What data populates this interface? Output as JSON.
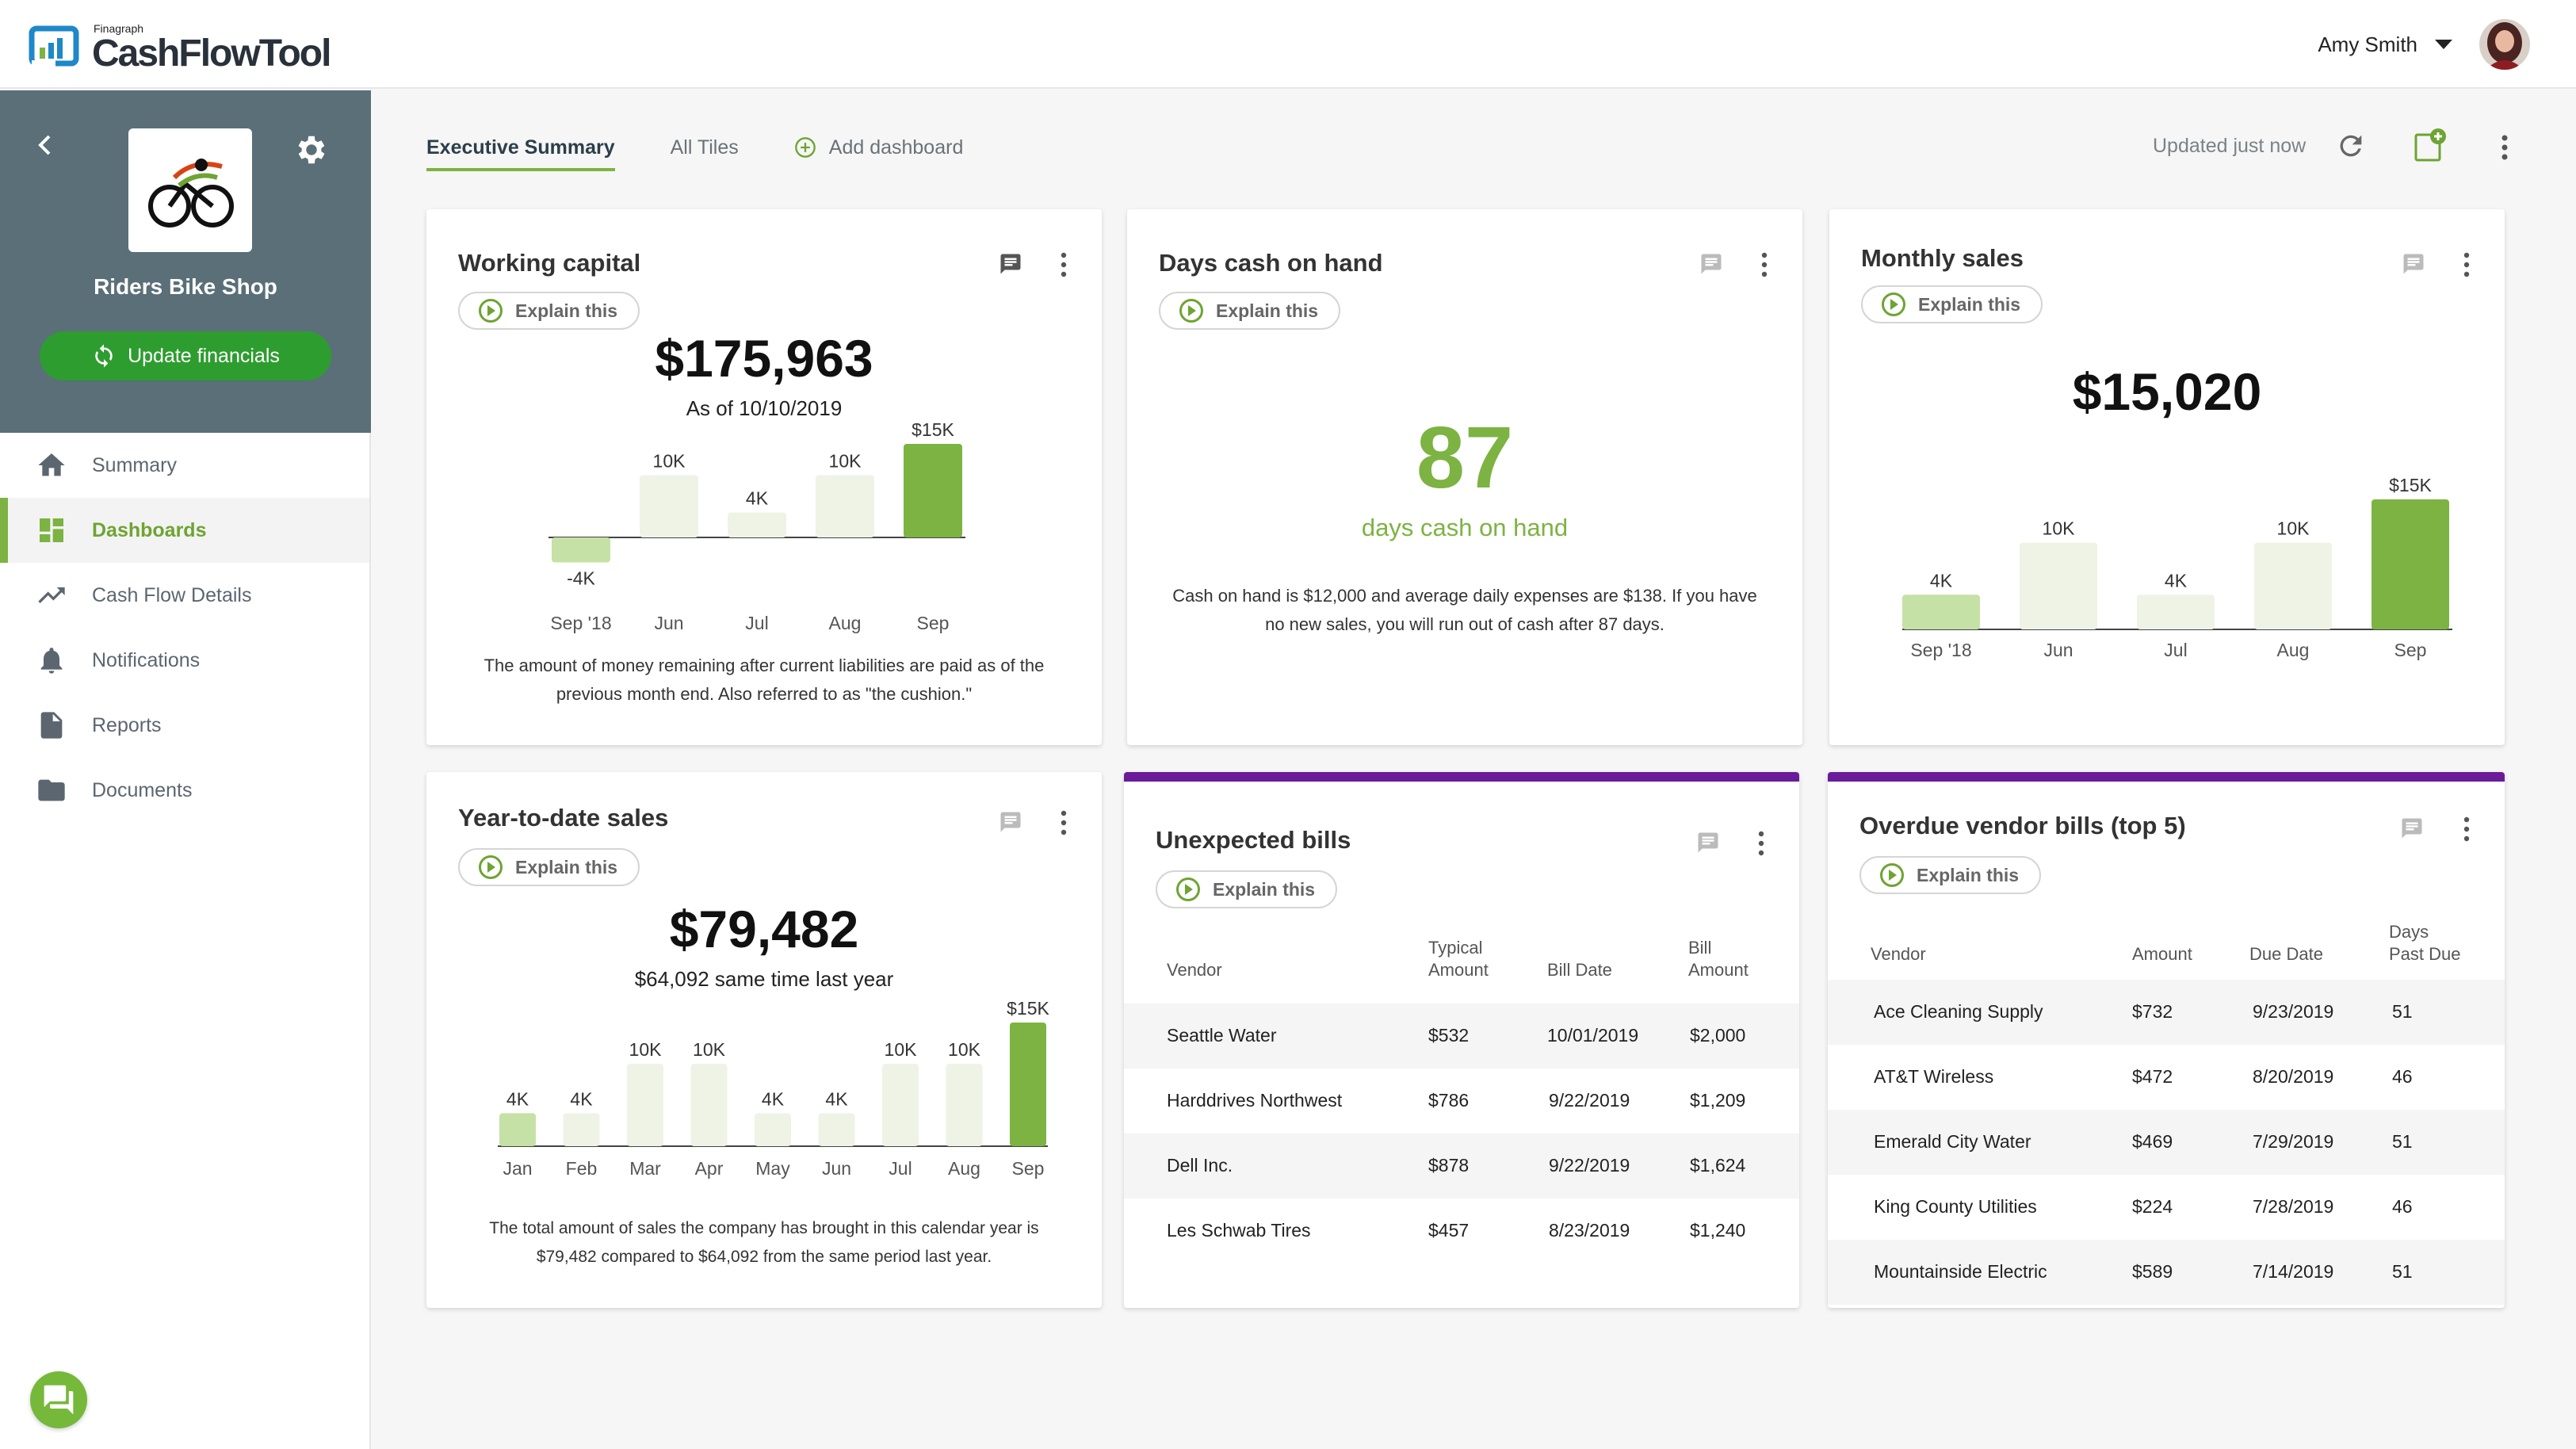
{
  "app": {
    "brand_small": "Finagraph",
    "brand": "CashFlowTool"
  },
  "user": {
    "name": "Amy Smith"
  },
  "sidebar": {
    "company_name": "Riders Bike Shop",
    "update_label": "Update financials",
    "items": [
      {
        "label": "Summary",
        "icon": "home-icon"
      },
      {
        "label": "Dashboards",
        "icon": "dashboard-icon"
      },
      {
        "label": "Cash Flow Details",
        "icon": "trending-icon"
      },
      {
        "label": "Notifications",
        "icon": "bell-icon"
      },
      {
        "label": "Reports",
        "icon": "report-icon"
      },
      {
        "label": "Documents",
        "icon": "folder-icon"
      }
    ]
  },
  "tabs": {
    "executive": "Executive Summary",
    "all_tiles": "All Tiles",
    "add": "Add dashboard"
  },
  "status": {
    "updated": "Updated just now"
  },
  "explain_label": "Explain this",
  "colors": {
    "accent_green": "#7cb342",
    "light_green": "#c5e1a5",
    "pale_green": "#eef3e6",
    "purple": "#6a1b9a"
  },
  "cards": {
    "working_capital": {
      "title": "Working capital",
      "value": "$175,963",
      "sub": "As of 10/10/2019",
      "desc": "The amount of money remaining after current liabilities are paid as of the previous month end. Also referred to as \"the cushion.\""
    },
    "days_cash": {
      "title": "Days cash on hand",
      "value": "87",
      "sub": "days cash on hand",
      "desc": "Cash on hand is $12,000 and average daily expenses are $138.  If you have no new sales, you will run out of cash after 87 days."
    },
    "monthly_sales": {
      "title": "Monthly sales",
      "value": "$15,020"
    },
    "ytd_sales": {
      "title": "Year-to-date sales",
      "value": "$79,482",
      "sub": "$64,092 same time last year",
      "desc": "The total amount of sales the company has brought in this calendar year is $79,482 compared to $64,092 from the same period last year."
    },
    "unexpected_bills": {
      "title": "Unexpected bills",
      "headers": {
        "vendor": "Vendor",
        "typical_1": "Typical",
        "typical_2": "Amount",
        "bill_date": "Bill Date",
        "bill_1": "Bill",
        "bill_2": "Amount"
      },
      "rows": [
        {
          "vendor": "Seattle Water",
          "typical": "$532",
          "date": "10/01/2019",
          "amount": "$2,000"
        },
        {
          "vendor": "Harddrives Northwest",
          "typical": "$786",
          "date": "9/22/2019",
          "amount": "$1,209"
        },
        {
          "vendor": "Dell Inc.",
          "typical": "$878",
          "date": "9/22/2019",
          "amount": "$1,624"
        },
        {
          "vendor": "Les Schwab Tires",
          "typical": "$457",
          "date": "8/23/2019",
          "amount": "$1,240"
        }
      ]
    },
    "overdue_bills": {
      "title": "Overdue vendor bills (top 5)",
      "headers": {
        "vendor": "Vendor",
        "amount": "Amount",
        "due": "Due Date",
        "days_1": "Days",
        "days_2": "Past Due"
      },
      "rows": [
        {
          "vendor": "Ace Cleaning Supply",
          "amount": "$732",
          "due": "9/23/2019",
          "days": "51"
        },
        {
          "vendor": "AT&T Wireless",
          "amount": "$472",
          "due": "8/20/2019",
          "days": "46"
        },
        {
          "vendor": "Emerald City Water",
          "amount": "$469",
          "due": "7/29/2019",
          "days": "51"
        },
        {
          "vendor": "King County Utilities",
          "amount": "$224",
          "due": "7/28/2019",
          "days": "46"
        },
        {
          "vendor": "Mountainside Electric",
          "amount": "$589",
          "due": "7/14/2019",
          "days": "51"
        }
      ]
    }
  },
  "chart_data": [
    {
      "type": "bar",
      "title": "Working capital",
      "categories": [
        "Sep '18",
        "Jun",
        "Jul",
        "Aug",
        "Sep"
      ],
      "values": [
        -4000,
        10000,
        4000,
        10000,
        15000
      ],
      "labels": [
        "-4K",
        "10K",
        "4K",
        "10K",
        "$15K"
      ]
    },
    {
      "type": "bar",
      "title": "Monthly sales",
      "categories": [
        "Sep '18",
        "Jun",
        "Jul",
        "Aug",
        "Sep"
      ],
      "values": [
        4000,
        10000,
        4000,
        10000,
        15000
      ],
      "labels": [
        "4K",
        "10K",
        "4K",
        "10K",
        "$15K"
      ]
    },
    {
      "type": "bar",
      "title": "Year-to-date sales",
      "categories": [
        "Jan",
        "Feb",
        "Mar",
        "Apr",
        "May",
        "Jun",
        "Jul",
        "Aug",
        "Sep"
      ],
      "values": [
        4000,
        4000,
        10000,
        10000,
        4000,
        4000,
        10000,
        10000,
        15000
      ],
      "labels": [
        "4K",
        "4K",
        "10K",
        "10K",
        "4K",
        "4K",
        "10K",
        "10K",
        "$15K"
      ]
    }
  ]
}
